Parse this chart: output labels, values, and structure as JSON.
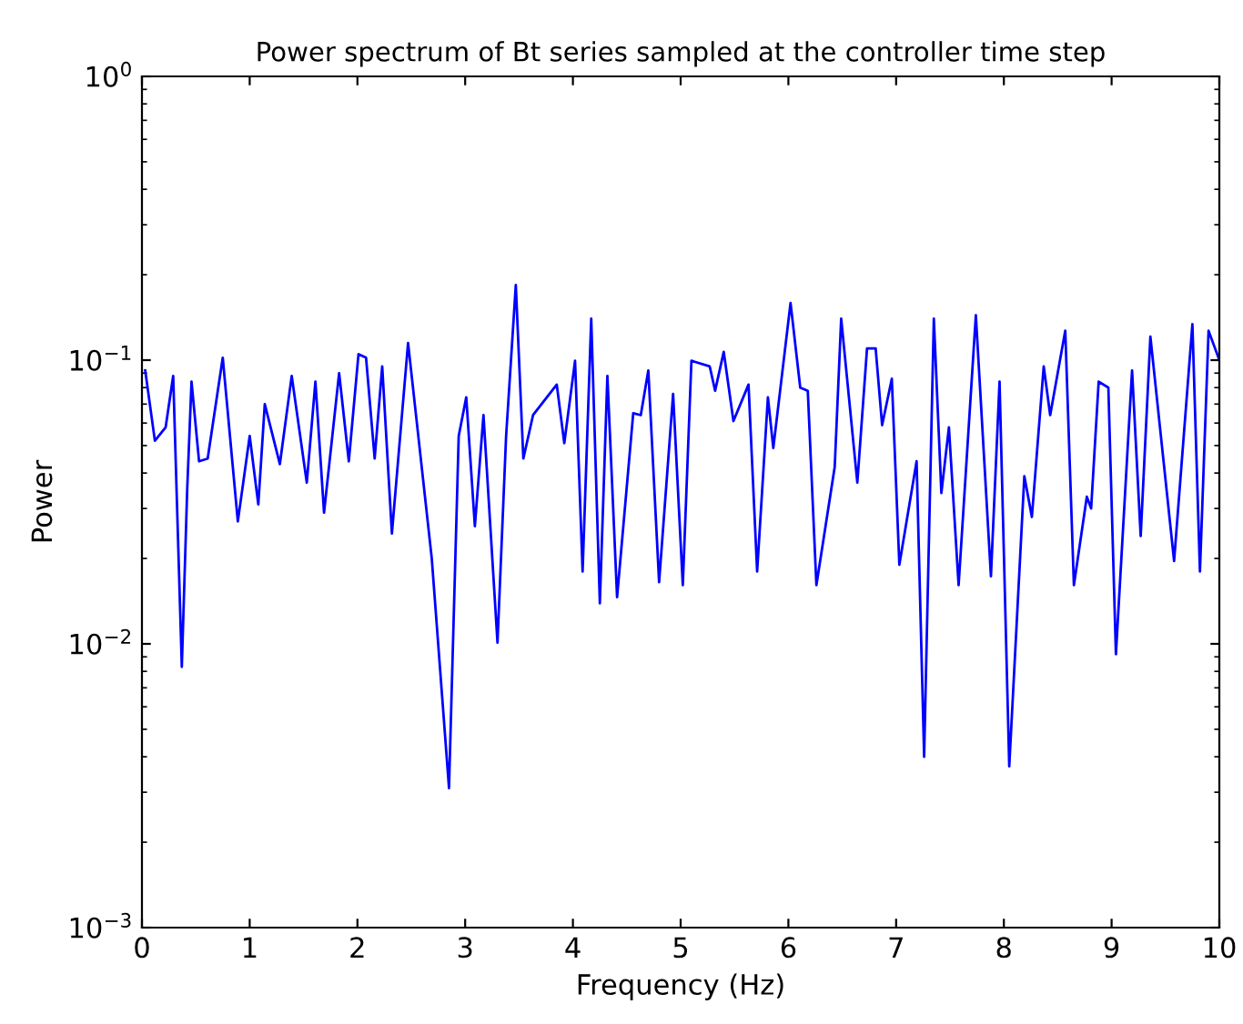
{
  "chart_data": {
    "type": "line",
    "title": "Power spectrum of Bt series sampled at the controller time step",
    "xlabel": "Frequency (Hz)",
    "ylabel": "Power",
    "log": "y",
    "grid": false,
    "xlim": [
      0,
      10
    ],
    "xticks": [
      0,
      1,
      2,
      3,
      4,
      5,
      6,
      7,
      8,
      9,
      10
    ],
    "ylim": [
      0.001,
      1
    ],
    "yticks": [
      {
        "value": 0.001,
        "label": "10$^{−3}$"
      },
      {
        "value": 0.01,
        "label": "10$^{−2}$"
      },
      {
        "value": 0.1,
        "label": "10$^{−1}$"
      },
      {
        "value": 1,
        "label": "10$^{0}$"
      }
    ],
    "series": [
      {
        "color": "#0000ff",
        "x": [
          0.03,
          0.12,
          0.22,
          0.29,
          0.33,
          0.37,
          0.42,
          0.46,
          0.53,
          0.61,
          0.75,
          0.89,
          1.0,
          1.08,
          1.14,
          1.28,
          1.39,
          1.53,
          1.61,
          1.69,
          1.83,
          1.92,
          2.01,
          2.08,
          2.16,
          2.23,
          2.32,
          2.47,
          2.69,
          2.85,
          2.94,
          3.01,
          3.09,
          3.17,
          3.3,
          3.38,
          3.47,
          3.54,
          3.63,
          3.85,
          3.92,
          4.02,
          4.09,
          4.17,
          4.25,
          4.32,
          4.41,
          4.56,
          4.63,
          4.7,
          4.8,
          4.93,
          5.02,
          5.1,
          5.27,
          5.32,
          5.4,
          5.49,
          5.63,
          5.71,
          5.81,
          5.86,
          6.02,
          6.11,
          6.18,
          6.26,
          6.43,
          6.49,
          6.64,
          6.73,
          6.81,
          6.87,
          6.96,
          7.03,
          7.19,
          7.26,
          7.35,
          7.42,
          7.49,
          7.58,
          7.74,
          7.88,
          7.96,
          8.05,
          8.19,
          8.26,
          8.37,
          8.43,
          8.57,
          8.65,
          8.77,
          8.81,
          8.88,
          8.97,
          9.04,
          9.19,
          9.27,
          9.36,
          9.58,
          9.75,
          9.82,
          9.9,
          10.0
        ],
        "values": [
          0.092,
          0.052,
          0.058,
          0.088,
          0.027,
          0.0083,
          0.035,
          0.084,
          0.044,
          0.045,
          0.102,
          0.027,
          0.054,
          0.031,
          0.07,
          0.043,
          0.088,
          0.037,
          0.084,
          0.029,
          0.09,
          0.044,
          0.105,
          0.102,
          0.045,
          0.095,
          0.0245,
          0.115,
          0.02,
          0.0031,
          0.054,
          0.074,
          0.026,
          0.064,
          0.0101,
          0.054,
          0.184,
          0.045,
          0.064,
          0.082,
          0.051,
          0.0995,
          0.018,
          0.14,
          0.0139,
          0.088,
          0.0146,
          0.065,
          0.064,
          0.092,
          0.0165,
          0.076,
          0.0161,
          0.0995,
          0.095,
          0.078,
          0.107,
          0.061,
          0.082,
          0.018,
          0.074,
          0.049,
          0.159,
          0.08,
          0.078,
          0.0161,
          0.042,
          0.14,
          0.037,
          0.11,
          0.11,
          0.059,
          0.086,
          0.019,
          0.044,
          0.004,
          0.14,
          0.034,
          0.058,
          0.0161,
          0.144,
          0.0173,
          0.084,
          0.0037,
          0.039,
          0.028,
          0.095,
          0.064,
          0.127,
          0.0161,
          0.033,
          0.03,
          0.084,
          0.08,
          0.0092,
          0.092,
          0.024,
          0.121,
          0.0196,
          0.134,
          0.018,
          0.127,
          0.1
        ]
      }
    ]
  }
}
